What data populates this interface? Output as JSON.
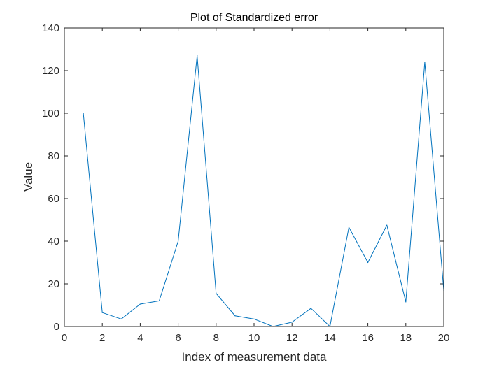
{
  "chart_data": {
    "type": "line",
    "title": "Plot of Standardized error",
    "xlabel": "Index of measurement data",
    "ylabel": "Value",
    "xlim": [
      0,
      20
    ],
    "ylim": [
      0,
      140
    ],
    "xticks": [
      0,
      2,
      4,
      6,
      8,
      10,
      12,
      14,
      16,
      18,
      20
    ],
    "yticks": [
      0,
      20,
      40,
      60,
      80,
      100,
      120,
      140
    ],
    "grid": false,
    "series": [
      {
        "color": "#0072bd",
        "x": [
          1,
          2,
          3,
          4,
          5,
          6,
          7,
          8,
          9,
          10,
          11,
          12,
          13,
          14,
          15,
          16,
          17,
          18,
          19,
          20
        ],
        "values": [
          100,
          6.5,
          3.5,
          10.5,
          12,
          40,
          127,
          15.5,
          5,
          3.5,
          0,
          2,
          8.5,
          0,
          46.5,
          30,
          47.5,
          11.5,
          124,
          17
        ]
      }
    ]
  }
}
